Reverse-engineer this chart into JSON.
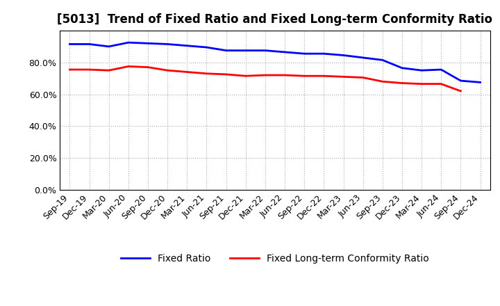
{
  "title": "[5013]  Trend of Fixed Ratio and Fixed Long-term Conformity Ratio",
  "x_labels": [
    "Sep-19",
    "Dec-19",
    "Mar-20",
    "Jun-20",
    "Sep-20",
    "Dec-20",
    "Mar-21",
    "Jun-21",
    "Sep-21",
    "Dec-21",
    "Mar-22",
    "Jun-22",
    "Sep-22",
    "Dec-22",
    "Mar-23",
    "Jun-23",
    "Sep-23",
    "Dec-23",
    "Mar-24",
    "Jun-24",
    "Sep-24",
    "Dec-24"
  ],
  "fixed_ratio": [
    91.5,
    91.5,
    90.0,
    92.5,
    92.0,
    91.5,
    90.5,
    89.5,
    87.5,
    87.5,
    87.5,
    86.5,
    85.5,
    85.5,
    84.5,
    83.0,
    81.5,
    76.5,
    75.0,
    75.5,
    68.5,
    67.5
  ],
  "fixed_lt_ratio": [
    75.5,
    75.5,
    75.0,
    77.5,
    77.0,
    75.0,
    74.0,
    73.0,
    72.5,
    71.5,
    72.0,
    72.0,
    71.5,
    71.5,
    71.0,
    70.5,
    68.0,
    67.0,
    66.5,
    66.5,
    62.0,
    null
  ],
  "fixed_ratio_color": "#0000FF",
  "fixed_lt_ratio_color": "#FF0000",
  "ylim": [
    0,
    100
  ],
  "yticks": [
    0,
    20,
    40,
    60,
    80
  ],
  "ytick_labels": [
    "0.0%",
    "20.0%",
    "40.0%",
    "60.0%",
    "80.0%"
  ],
  "background_color": "#FFFFFF",
  "grid_color": "#AAAAAA",
  "legend_fixed_ratio": "Fixed Ratio",
  "legend_fixed_lt_ratio": "Fixed Long-term Conformity Ratio",
  "title_fontsize": 12,
  "axis_fontsize": 9,
  "legend_fontsize": 10,
  "line_width": 2.0
}
